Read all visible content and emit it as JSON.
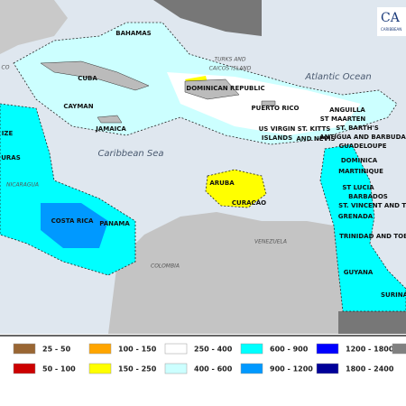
{
  "logo": "CA",
  "logo_sub": "CARIBBEAN",
  "labels": [
    {
      "text": "BAHAMAS",
      "style": "lbl"
    },
    {
      "text": "TURKS AND",
      "style": "cty"
    },
    {
      "text": "CAICOS ISLAND",
      "style": "cty"
    },
    {
      "text": "Atlantic Ocean",
      "style": "sea"
    },
    {
      "text": "CUBA",
      "style": "lbl"
    },
    {
      "text": "DOMINICAN REPUBLIC",
      "style": "lbl"
    },
    {
      "text": "CAYMAN",
      "style": "lbl"
    },
    {
      "text": "PUERTO RICO",
      "style": "lbl"
    },
    {
      "text": "ANGUILLA",
      "style": "lbl"
    },
    {
      "text": "ST MAARTEN",
      "style": "lbl"
    },
    {
      "text": "ST. BARTH'S",
      "style": "lbl"
    },
    {
      "text": "ANTIGUA AND BARBUDA",
      "style": "lbl"
    },
    {
      "text": "US VIRGIN",
      "style": "lbl"
    },
    {
      "text": "ISLANDS",
      "style": "lbl"
    },
    {
      "text": "ST. KITTS",
      "style": "lbl"
    },
    {
      "text": "AND NEVIS",
      "style": "lbl"
    },
    {
      "text": "JAMAICA",
      "style": "lbl"
    },
    {
      "text": "GUADELOUPE",
      "style": "lbl"
    },
    {
      "text": "IZE",
      "style": "lbl"
    },
    {
      "text": "Caribbean Sea",
      "style": "sea"
    },
    {
      "text": "DOMINICA",
      "style": "lbl"
    },
    {
      "text": "MARTINIQUE",
      "style": "lbl"
    },
    {
      "text": "URAS",
      "style": "lbl"
    },
    {
      "text": "NICARAGUA",
      "style": "cty"
    },
    {
      "text": "ARUBA",
      "style": "lbl"
    },
    {
      "text": "ST LUCIA",
      "style": "lbl"
    },
    {
      "text": "BARBADOS",
      "style": "lbl"
    },
    {
      "text": "ST. VINCENT AND THE",
      "style": "lbl"
    },
    {
      "text": "GRENADA",
      "style": "lbl"
    },
    {
      "text": "CURACAO",
      "style": "lbl"
    },
    {
      "text": "COSTA RICA",
      "style": "lbl"
    },
    {
      "text": "PANAMA",
      "style": "lbl"
    },
    {
      "text": "TRINIDAD AND TOBA",
      "style": "lbl"
    },
    {
      "text": "VENEZUELA",
      "style": "cty"
    },
    {
      "text": "COLOMBIA",
      "style": "cty"
    },
    {
      "text": "GUYANA",
      "style": "lbl"
    },
    {
      "text": "SURINA",
      "style": "lbl"
    },
    {
      "text": "CO",
      "style": "cty"
    }
  ],
  "legend": [
    {
      "label": "25 - 50",
      "color": "#996633"
    },
    {
      "label": "50 - 100",
      "color": "#cc0000"
    },
    {
      "label": "100 - 150",
      "color": "#ffa500"
    },
    {
      "label": "150 - 250",
      "color": "#ffff00"
    },
    {
      "label": "250 - 400",
      "color": "#ffffff"
    },
    {
      "label": "400 - 600",
      "color": "#ccffff"
    },
    {
      "label": "600 - 900",
      "color": "#00ffff"
    },
    {
      "label": "900 - 1200",
      "color": "#0099ff"
    },
    {
      "label": "1200 - 1800",
      "color": "#0000ff"
    },
    {
      "label": "1800 - 2400",
      "color": "#000099"
    },
    {
      "color": "#808080"
    }
  ]
}
